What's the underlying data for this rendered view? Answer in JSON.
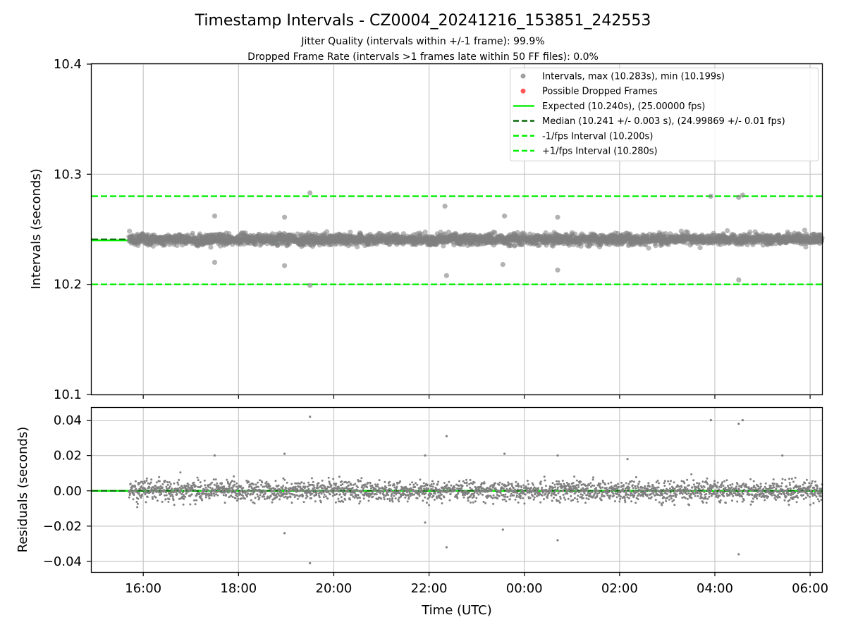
{
  "figure": {
    "title": "Timestamp Intervals - CZ0004_20241216_153851_242553",
    "subtitle_1": "Jitter Quality (intervals within +/-1 frame): 99.9%",
    "subtitle_2": "Dropped Frame Rate (intervals >1 frames late within 50 FF files): 0.0%",
    "xlabel": "Time (UTC)"
  },
  "colors": {
    "points": "#808080",
    "dropped": "#ff5555",
    "expected": "#00ee00",
    "median": "#006400",
    "bounds": "#00ee00",
    "grid": "#c8c8c8"
  },
  "chart_data": [
    {
      "type": "scatter",
      "panel": "intervals",
      "ylabel": "Intervals (seconds)",
      "ylim": [
        10.1,
        10.4
      ],
      "y_ticks": [
        "10.1",
        "10.2",
        "10.3",
        "10.4"
      ],
      "x_range": [
        "2024-12-16 14:55",
        "2024-12-17 06:15"
      ],
      "x_ticks": [
        "16:00",
        "18:00",
        "20:00",
        "22:00",
        "00:00",
        "02:00",
        "04:00",
        "06:00"
      ],
      "grid": true,
      "legend_position": "top-right",
      "legend": [
        {
          "label": "Intervals, max (10.283s), min (10.199s)",
          "kind": "dot",
          "color": "#a0a0a0"
        },
        {
          "label": "Possible Dropped Frames",
          "kind": "dot",
          "color": "#ff5555"
        },
        {
          "label": "Expected (10.240s), (25.00000 fps)",
          "kind": "solid",
          "color": "#00ee00"
        },
        {
          "label": "Median (10.241 +/- 0.003 s), (24.99869 +/- 0.01 fps)",
          "kind": "dashed",
          "color": "#006400"
        },
        {
          "label": "-1/fps Interval (10.200s)",
          "kind": "dashed",
          "color": "#00ee00"
        },
        {
          "label": "+1/fps Interval (10.280s)",
          "kind": "dashed",
          "color": "#00ee00"
        }
      ],
      "reference_lines": {
        "expected": 10.24,
        "median": 10.241,
        "lower": 10.2,
        "upper": 10.28
      },
      "series": {
        "time_range": [
          "2024-12-16 15:42",
          "2024-12-17 06:15"
        ],
        "center": 10.241,
        "typical_spread": 0.004,
        "outliers": [
          {
            "t": "2024-12-16 19:30",
            "y": 10.283
          },
          {
            "t": "2024-12-16 19:30",
            "y": 10.199
          },
          {
            "t": "2024-12-16 22:20",
            "y": 10.271
          },
          {
            "t": "2024-12-16 22:22",
            "y": 10.208
          },
          {
            "t": "2024-12-17 03:55",
            "y": 10.28
          },
          {
            "t": "2024-12-17 04:30",
            "y": 10.279
          },
          {
            "t": "2024-12-17 04:35",
            "y": 10.281
          },
          {
            "t": "2024-12-17 04:30",
            "y": 10.204
          },
          {
            "t": "2024-12-16 18:58",
            "y": 10.261
          },
          {
            "t": "2024-12-16 18:58",
            "y": 10.217
          },
          {
            "t": "2024-12-16 23:35",
            "y": 10.262
          },
          {
            "t": "2024-12-16 23:33",
            "y": 10.218
          },
          {
            "t": "2024-12-17 00:42",
            "y": 10.213
          },
          {
            "t": "2024-12-17 00:42",
            "y": 10.261
          },
          {
            "t": "2024-12-16 17:30",
            "y": 10.262
          },
          {
            "t": "2024-12-16 17:30",
            "y": 10.22
          }
        ]
      }
    },
    {
      "type": "scatter",
      "panel": "residuals",
      "ylabel": "Residuals (seconds)",
      "ylim": [
        -0.046,
        0.047
      ],
      "y_ticks": [
        "0.04",
        "0.02",
        "0.00",
        "−0.02",
        "−0.04"
      ],
      "grid": true,
      "reference_lines": {
        "median_residual": 0.0,
        "expected_residual": 0.0
      },
      "series": {
        "time_range": [
          "2024-12-16 15:42",
          "2024-12-17 06:15"
        ],
        "center": 0.0,
        "typical_spread": 0.004,
        "outliers": [
          {
            "t": "2024-12-16 19:30",
            "y": 0.042
          },
          {
            "t": "2024-12-16 19:30",
            "y": -0.041
          },
          {
            "t": "2024-12-16 22:22",
            "y": 0.031
          },
          {
            "t": "2024-12-16 22:22",
            "y": -0.032
          },
          {
            "t": "2024-12-17 03:55",
            "y": 0.04
          },
          {
            "t": "2024-12-17 04:30",
            "y": 0.038
          },
          {
            "t": "2024-12-17 04:35",
            "y": 0.04
          },
          {
            "t": "2024-12-17 04:30",
            "y": -0.036
          },
          {
            "t": "2024-12-16 17:30",
            "y": 0.02
          },
          {
            "t": "2024-12-16 18:58",
            "y": 0.021
          },
          {
            "t": "2024-12-16 18:58",
            "y": -0.024
          },
          {
            "t": "2024-12-16 21:55",
            "y": 0.02
          },
          {
            "t": "2024-12-16 21:55",
            "y": -0.018
          },
          {
            "t": "2024-12-16 23:35",
            "y": 0.021
          },
          {
            "t": "2024-12-16 23:33",
            "y": -0.022
          },
          {
            "t": "2024-12-17 00:42",
            "y": 0.02
          },
          {
            "t": "2024-12-17 00:42",
            "y": -0.028
          },
          {
            "t": "2024-12-17 02:10",
            "y": 0.018
          },
          {
            "t": "2024-12-17 05:25",
            "y": 0.02
          }
        ]
      }
    }
  ]
}
